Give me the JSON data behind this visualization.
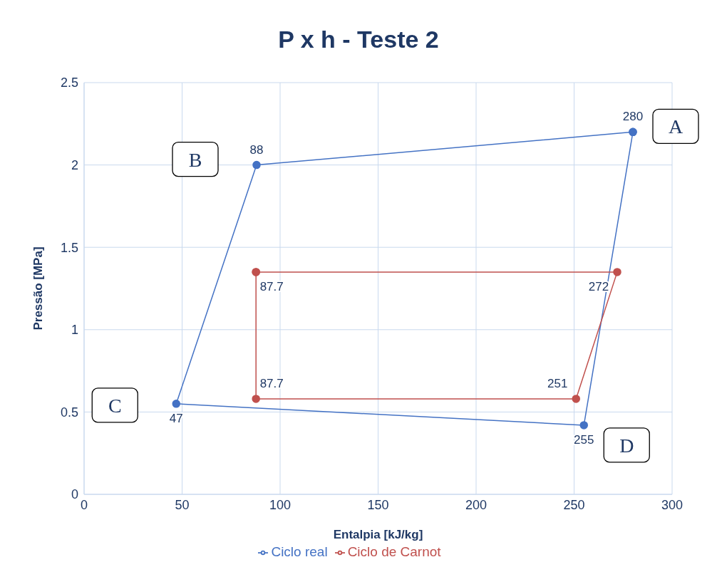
{
  "chart_data": {
    "type": "scatter",
    "title": "P x h - Teste 2",
    "xlabel": "Entalpia [kJ/kg]",
    "ylabel": "Pressão [MPa]",
    "series": [
      {
        "name": "Ciclo real",
        "color": "#4472c4",
        "x": [
          280,
          88,
          47,
          255,
          280
        ],
        "values": [
          2.2,
          2.0,
          0.55,
          0.42,
          2.2
        ]
      },
      {
        "name": "Ciclo de Carnot",
        "color": "#c0504d",
        "x": [
          87.7,
          272,
          251,
          87.7,
          87.7
        ],
        "values": [
          1.35,
          1.35,
          0.58,
          0.58,
          1.35
        ]
      }
    ],
    "xlim": [
      0,
      300
    ],
    "xticks": [
      0,
      50,
      100,
      150,
      200,
      250,
      300
    ],
    "ylim": [
      0,
      2.5
    ],
    "yticks": [
      0,
      0.5,
      1,
      1.5,
      2,
      2.5
    ],
    "grid": true,
    "legend": "bottom",
    "marker": "circle",
    "line_style": "solid",
    "annotations": [
      {
        "text": "280",
        "x": 280,
        "y": 2.2
      },
      {
        "text": "88",
        "x": 88,
        "y": 2.0
      },
      {
        "text": "47",
        "x": 47,
        "y": 0.55
      },
      {
        "text": "255",
        "x": 255,
        "y": 0.42
      },
      {
        "text": "87.7",
        "x": 87.7,
        "y": 1.35
      },
      {
        "text": "272",
        "x": 272,
        "y": 1.35
      },
      {
        "text": "251",
        "x": 251,
        "y": 0.58
      },
      {
        "text": "87.7",
        "x": 87.7,
        "y": 0.58
      },
      {
        "text": "A",
        "x": 280,
        "y": 2.2
      },
      {
        "text": "B",
        "x": 88,
        "y": 2.0
      },
      {
        "text": "C",
        "x": 47,
        "y": 0.55
      },
      {
        "text": "D",
        "x": 255,
        "y": 0.42
      }
    ]
  }
}
